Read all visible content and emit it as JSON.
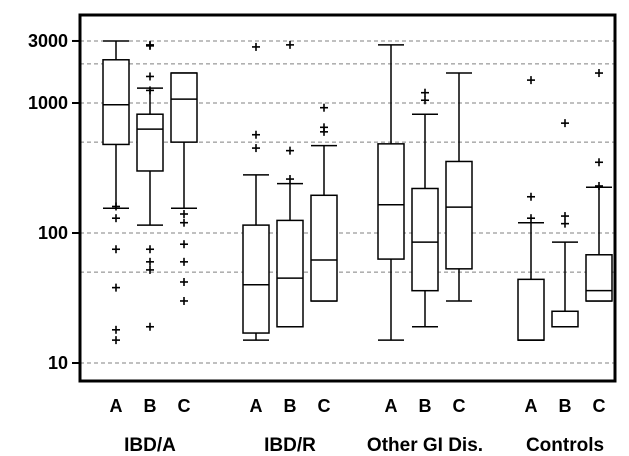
{
  "chart_data": {
    "type": "boxplot",
    "title": "",
    "xlabel": "",
    "ylabel": "",
    "y_scale": "log",
    "ylim": [
      8,
      4600
    ],
    "y_ticks": [
      {
        "value": 10,
        "label": "10"
      },
      {
        "value": 100,
        "label": "100"
      },
      {
        "value": 1000,
        "label": "1000"
      },
      {
        "value": 3000,
        "label": "3000"
      }
    ],
    "gridlines": [
      10,
      50,
      100,
      500,
      1000,
      2000,
      3000
    ],
    "grid": "dashed horizontal",
    "groups": [
      {
        "name": "IBD/A",
        "boxes": [
          {
            "label": "A",
            "min": 155,
            "q1": 480,
            "median": 970,
            "q3": 2150,
            "max": 3000,
            "outliers": [
              160,
              130,
              75,
              38,
              18,
              15
            ]
          },
          {
            "label": "B",
            "min": 115,
            "q1": 300,
            "median": 630,
            "q3": 820,
            "max": 1300,
            "outliers": [
              2800,
              2750,
              1600,
              1250,
              75,
              60,
              52,
              19
            ]
          },
          {
            "label": "C",
            "min": 155,
            "q1": 500,
            "median": 1070,
            "q3": 1700,
            "max": 1700,
            "outliers": [
              140,
              120,
              82,
              60,
              42,
              30
            ]
          }
        ]
      },
      {
        "name": "IBD/R",
        "boxes": [
          {
            "label": "A",
            "min": 15,
            "q1": 17,
            "median": 40,
            "q3": 115,
            "max": 280,
            "outliers": [
              2700,
              570,
              450
            ]
          },
          {
            "label": "B",
            "min": 19,
            "q1": 19,
            "median": 45,
            "q3": 125,
            "max": 240,
            "outliers": [
              2800,
              430,
              260
            ]
          },
          {
            "label": "C",
            "min": 30,
            "q1": 30,
            "median": 62,
            "q3": 195,
            "max": 470,
            "outliers": [
              920,
              650,
              600
            ]
          }
        ]
      },
      {
        "name": "Other GI Dis.",
        "boxes": [
          {
            "label": "A",
            "min": 15,
            "q1": 63,
            "median": 165,
            "q3": 485,
            "max": 2800,
            "outliers": []
          },
          {
            "label": "B",
            "min": 19,
            "q1": 36,
            "median": 85,
            "q3": 220,
            "max": 820,
            "outliers": [
              1200,
              1050
            ]
          },
          {
            "label": "C",
            "min": 30,
            "q1": 53,
            "median": 158,
            "q3": 355,
            "max": 1700,
            "outliers": []
          }
        ]
      },
      {
        "name": "Controls",
        "boxes": [
          {
            "label": "A",
            "min": 15,
            "q1": 15,
            "median": 15,
            "q3": 44,
            "max": 120,
            "outliers": [
              1500,
              190,
              130
            ]
          },
          {
            "label": "B",
            "min": 19,
            "q1": 19,
            "median": 19,
            "q3": 25,
            "max": 85,
            "outliers": [
              700,
              135,
              118
            ]
          },
          {
            "label": "C",
            "min": 30,
            "q1": 30,
            "median": 36,
            "q3": 68,
            "max": 225,
            "outliers": [
              1700,
              350,
              230
            ]
          }
        ]
      }
    ],
    "style": {
      "box_color": "#000000",
      "grid_color": "#808080",
      "background": "#ffffff"
    }
  }
}
